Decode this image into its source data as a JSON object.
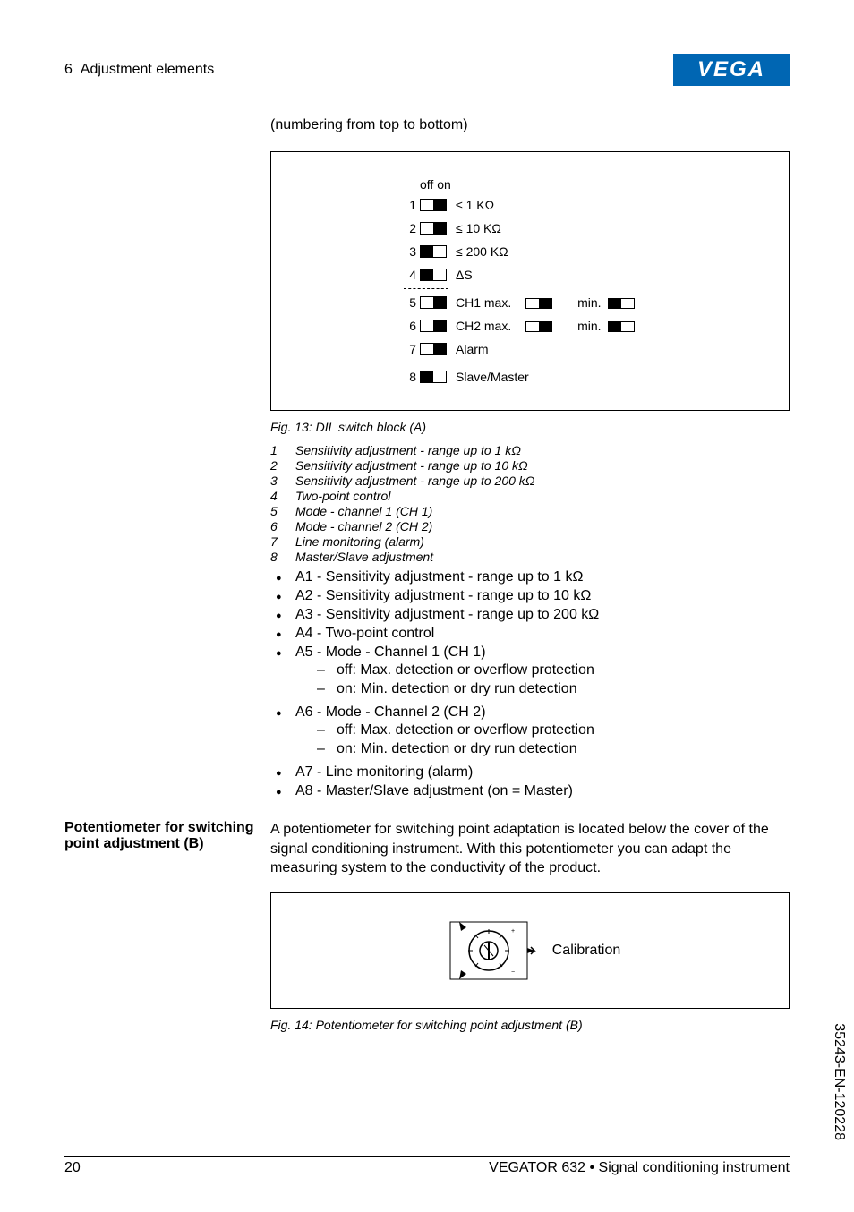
{
  "header": {
    "section_number": "6",
    "section_title": "Adjustment elements",
    "logo_text": "VEGA",
    "logo_bg": "#0066b3",
    "logo_fg": "#ffffff"
  },
  "intro_line": "(numbering from top to bottom)",
  "fig13": {
    "off_on": "off  on",
    "switches": [
      {
        "num": "1",
        "on": true,
        "label": "≤ 1 KΩ"
      },
      {
        "num": "2",
        "on": true,
        "label": "≤ 10 KΩ"
      },
      {
        "num": "3",
        "on": false,
        "label": "≤ 200 KΩ"
      },
      {
        "num": "4",
        "on": false,
        "label": "ΔS"
      },
      {
        "num": "5",
        "on": true,
        "label": "CH1   max.",
        "extra": "min."
      },
      {
        "num": "6",
        "on": true,
        "label": "CH2   max.",
        "extra": "min."
      },
      {
        "num": "7",
        "on": true,
        "label": "Alarm"
      },
      {
        "num": "8",
        "on": false,
        "label": "Slave/Master"
      }
    ],
    "caption": "Fig. 13: DIL switch block (A)",
    "legend": [
      {
        "n": "1",
        "t": "Sensitivity adjustment - range up to 1 kΩ"
      },
      {
        "n": "2",
        "t": "Sensitivity adjustment - range up to 10 kΩ"
      },
      {
        "n": "3",
        "t": "Sensitivity adjustment - range up to 200 kΩ"
      },
      {
        "n": "4",
        "t": "Two-point control"
      },
      {
        "n": "5",
        "t": "Mode - channel 1 (CH 1)"
      },
      {
        "n": "6",
        "t": "Mode - channel 2 (CH 2)"
      },
      {
        "n": "7",
        "t": "Line monitoring (alarm)"
      },
      {
        "n": "8",
        "t": "Master/Slave adjustment"
      }
    ],
    "bullets": [
      "A1 - Sensitivity adjustment - range up to 1 kΩ",
      "A2 - Sensitivity adjustment - range up to 10 kΩ",
      "A3 - Sensitivity adjustment - range up to 200 kΩ",
      "A4 - Two-point control"
    ],
    "a5_label": "A5 - Mode - Channel 1 (CH 1)",
    "a5_sub": [
      "off: Max. detection or overflow protection",
      "on: Min. detection or dry run detection"
    ],
    "a6_label": "A6 - Mode - Channel 2 (CH 2)",
    "a6_sub": [
      "off: Max. detection or overflow protection",
      "on: Min. detection or dry run detection"
    ],
    "bullets_tail": [
      "A7 - Line monitoring (alarm)",
      "A8 - Master/Slave adjustment (on = Master)"
    ]
  },
  "potentiometer": {
    "sidebar_title": "Potentiometer for switching point adjustment (B)",
    "paragraph": "A potentiometer for switching point adaptation is located below the cover of the signal conditioning instrument. With this potentiometer you can adapt the measuring system to the conductivity of the product.",
    "calibration_label": "Calibration",
    "caption": "Fig. 14: Potentiometer for switching point adjustment (B)"
  },
  "footer": {
    "page_number": "20",
    "product": "VEGATOR 632 • Signal conditioning instrument",
    "side_code": "35243-EN-120228"
  }
}
